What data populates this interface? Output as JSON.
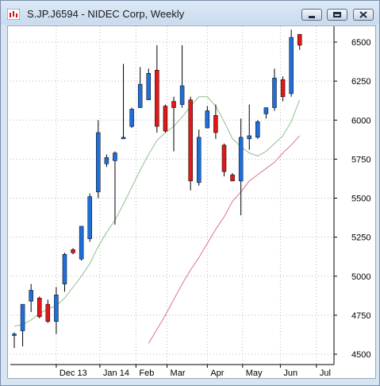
{
  "window": {
    "title": "S.JP.J6594 - NIDEC Corp, Weekly"
  },
  "chart_data": {
    "type": "candlestick",
    "symbol": "S.JP.J6594",
    "period": "Weekly",
    "colors": {
      "up": "#1e6fd9",
      "down": "#e01818",
      "ma_fast": "#8fbf8f",
      "ma_slow": "#e07090"
    },
    "ylim": [
      4470,
      6560
    ],
    "y_ticks": [
      4500,
      4750,
      5000,
      5250,
      5500,
      5750,
      6000,
      6250,
      6500
    ],
    "x_tick_labels": [
      "Dec 13",
      "Jan 14",
      "Feb",
      "Mar",
      "Apr",
      "May",
      "Jun",
      "Jul"
    ],
    "x_tick_positions": [
      5,
      10.2,
      14.5,
      18.2,
      23,
      27.2,
      31.7,
      36
    ],
    "candles": [
      {
        "o": 4620,
        "h": 4640,
        "l": 4540,
        "c": 4630
      },
      {
        "o": 4650,
        "h": 4820,
        "l": 4550,
        "c": 4820
      },
      {
        "o": 4840,
        "h": 4950,
        "l": 4770,
        "c": 4910
      },
      {
        "o": 4860,
        "h": 4870,
        "l": 4730,
        "c": 4740
      },
      {
        "o": 4820,
        "h": 4850,
        "l": 4700,
        "c": 4710
      },
      {
        "o": 4710,
        "h": 4930,
        "l": 4630,
        "c": 4880
      },
      {
        "o": 4950,
        "h": 5150,
        "l": 4900,
        "c": 5140
      },
      {
        "o": 5170,
        "h": 5180,
        "l": 5140,
        "c": 5150
      },
      {
        "o": 5110,
        "h": 5320,
        "l": 5100,
        "c": 5320
      },
      {
        "o": 5240,
        "h": 5530,
        "l": 5220,
        "c": 5510
      },
      {
        "o": 5540,
        "h": 6000,
        "l": 5500,
        "c": 5920
      },
      {
        "o": 5720,
        "h": 5780,
        "l": 5700,
        "c": 5760
      },
      {
        "o": 5740,
        "h": 5800,
        "l": 5330,
        "c": 5790
      },
      {
        "o": 5880,
        "h": 6360,
        "l": 5880,
        "c": 5890
      },
      {
        "o": 5960,
        "h": 6080,
        "l": 5950,
        "c": 6070
      },
      {
        "o": 6080,
        "h": 6340,
        "l": 6080,
        "c": 6230
      },
      {
        "o": 6130,
        "h": 6330,
        "l": 6130,
        "c": 6300
      },
      {
        "o": 6320,
        "h": 6480,
        "l": 5920,
        "c": 5960
      },
      {
        "o": 6090,
        "h": 6100,
        "l": 5920,
        "c": 5930
      },
      {
        "o": 6120,
        "h": 6150,
        "l": 5800,
        "c": 6080
      },
      {
        "o": 6100,
        "h": 6480,
        "l": 6080,
        "c": 6220
      },
      {
        "o": 6130,
        "h": 6150,
        "l": 5550,
        "c": 5610
      },
      {
        "o": 5600,
        "h": 5940,
        "l": 5580,
        "c": 5890
      },
      {
        "o": 5950,
        "h": 6090,
        "l": 5950,
        "c": 6060
      },
      {
        "o": 6030,
        "h": 6100,
        "l": 5880,
        "c": 5920
      },
      {
        "o": 5840,
        "h": 5850,
        "l": 5640,
        "c": 5670
      },
      {
        "o": 5650,
        "h": 5660,
        "l": 5610,
        "c": 5610
      },
      {
        "o": 5610,
        "h": 6010,
        "l": 5390,
        "c": 5890
      },
      {
        "o": 5880,
        "h": 6100,
        "l": 5810,
        "c": 5900
      },
      {
        "o": 5890,
        "h": 6000,
        "l": 5880,
        "c": 5990
      },
      {
        "o": 6040,
        "h": 6080,
        "l": 6010,
        "c": 6080
      },
      {
        "o": 6080,
        "h": 6330,
        "l": 6060,
        "c": 6270
      },
      {
        "o": 6260,
        "h": 6280,
        "l": 6120,
        "c": 6150
      },
      {
        "o": 6170,
        "h": 6580,
        "l": 6150,
        "c": 6530
      },
      {
        "o": 6550,
        "h": 6550,
        "l": 6450,
        "c": 6480
      }
    ],
    "ma_fast": [
      4680,
      4690,
      4720,
      4760,
      4790,
      4810,
      4860,
      4930,
      5000,
      5080,
      5190,
      5280,
      5360,
      5460,
      5570,
      5680,
      5780,
      5870,
      5920,
      5960,
      6020,
      6090,
      6150,
      6150,
      6090,
      5990,
      5880,
      5830,
      5790,
      5770,
      5800,
      5850,
      5900,
      5990,
      6130
    ],
    "ma_slow": [
      null,
      null,
      null,
      null,
      null,
      null,
      null,
      null,
      null,
      null,
      null,
      null,
      null,
      null,
      null,
      null,
      4570,
      4660,
      4750,
      4850,
      4950,
      5040,
      5120,
      5210,
      5300,
      5380,
      5480,
      5540,
      5610,
      5650,
      5690,
      5730,
      5790,
      5840,
      5900
    ]
  }
}
